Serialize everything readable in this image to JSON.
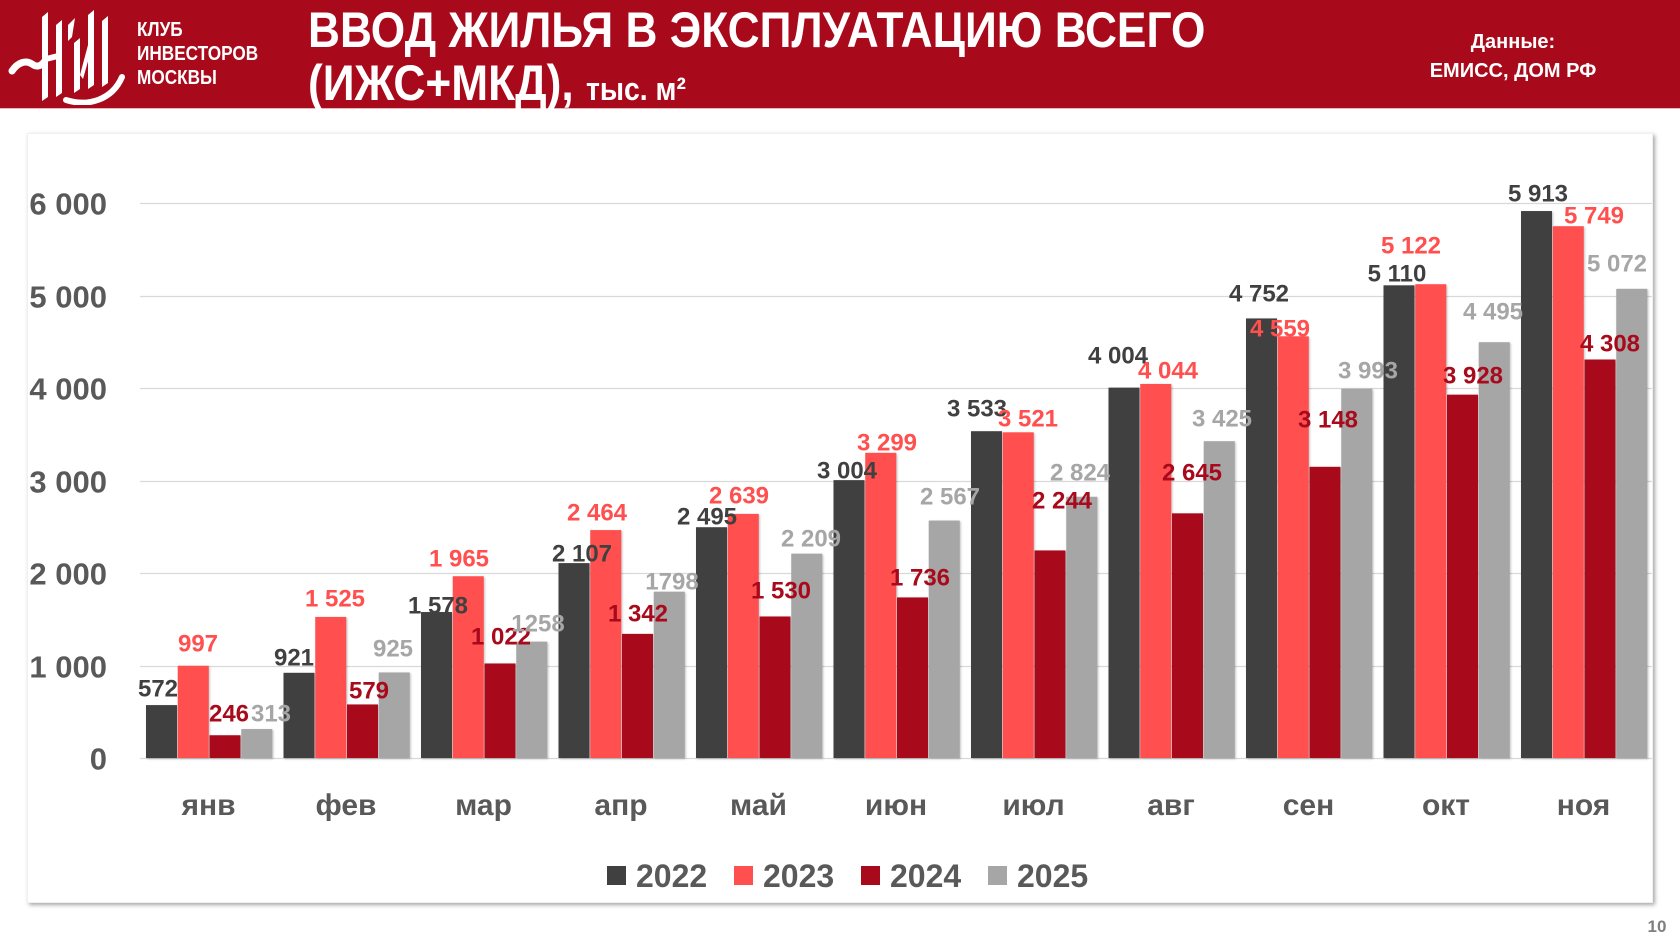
{
  "header": {
    "club_name": [
      "КЛУБ",
      "ИНВЕСТОРОВ",
      "МОСКВЫ"
    ],
    "source_label": "Данные:",
    "source_value": "ЕМИСС, ДОМ РФ",
    "brand_color": "#A80A1B"
  },
  "page_number": "10",
  "chart_data": {
    "type": "bar",
    "title_line1": "ВВОД ЖИЛЬЯ В ЭКСПЛУАТАЦИЮ ВСЕГО",
    "title_line2": "(ИЖС+МКД),",
    "title_unit": "тыс. м²",
    "xlabel": "",
    "ylabel": "",
    "ylim": [
      0,
      6000
    ],
    "grid": true,
    "legend": "bottom",
    "yticks": [
      {
        "value": 0,
        "label": "0"
      },
      {
        "value": 1000,
        "label": "1 000"
      },
      {
        "value": 2000,
        "label": "2 000"
      },
      {
        "value": 3000,
        "label": "3 000"
      },
      {
        "value": 4000,
        "label": "4 000"
      },
      {
        "value": 5000,
        "label": "5 000"
      },
      {
        "value": 6000,
        "label": "6 000"
      }
    ],
    "categories": [
      "янв",
      "фев",
      "мар",
      "апр",
      "май",
      "июн",
      "июл",
      "авг",
      "сен",
      "окт",
      "ноя"
    ],
    "series": [
      {
        "name": "2022",
        "color": "#404040",
        "values": [
          572,
          921,
          1578,
          2107,
          2495,
          3004,
          3533,
          4004,
          4752,
          5110,
          5913
        ],
        "labels": [
          "572",
          "921",
          "1 578",
          "2 107",
          "2 495",
          "3 004",
          "3 533",
          "4 004",
          "4 752",
          "5 110",
          "5 913"
        ]
      },
      {
        "name": "2023",
        "color": "#FF4F4F",
        "values": [
          997,
          1525,
          1965,
          2464,
          2639,
          3299,
          3521,
          4044,
          4559,
          5122,
          5749
        ],
        "labels": [
          "997",
          "1 525",
          "1 965",
          "2 464",
          "2 639",
          "3 299",
          "3 521",
          "4 044",
          "4 559",
          "5 122",
          "5 749"
        ]
      },
      {
        "name": "2024",
        "color": "#A80A1C",
        "values": [
          246,
          579,
          1022,
          1342,
          1530,
          1736,
          2244,
          2645,
          3148,
          3928,
          4308
        ],
        "labels": [
          "246",
          "579",
          "1 022",
          "1 342",
          "1 530",
          "1 736",
          "2 244",
          "2 645",
          "3 148",
          "3 928",
          "4 308"
        ]
      },
      {
        "name": "2025",
        "color": "#A6A6A6",
        "values": [
          313,
          925,
          1258,
          1798,
          2209,
          2567,
          2824,
          3425,
          3993,
          4495,
          5072
        ],
        "labels": [
          "313",
          "925",
          "1258",
          "1798",
          "2 209",
          "2 567",
          "2 824",
          "3 425",
          "3 993",
          "4 495",
          "5 072"
        ]
      }
    ]
  }
}
